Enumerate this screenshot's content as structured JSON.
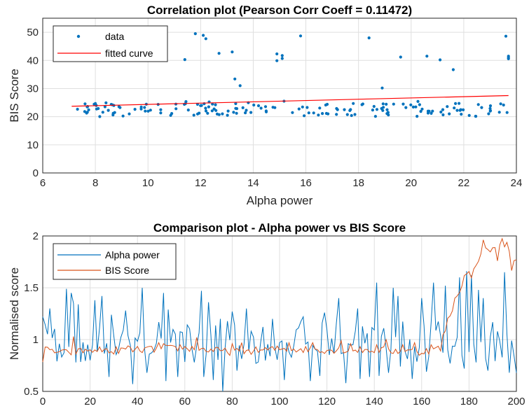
{
  "chart_data": [
    {
      "type": "scatter",
      "title": "Correlation plot (Pearson Corr Coeff = 0.11472)",
      "xlabel": "Alpha power",
      "ylabel": "BIS Score",
      "xlim": [
        6,
        24
      ],
      "ylim": [
        0,
        55
      ],
      "xticks": [
        "6",
        "8",
        "10",
        "12",
        "14",
        "16",
        "18",
        "20",
        "22",
        "24"
      ],
      "yticks": [
        "0",
        "10",
        "20",
        "30",
        "40",
        "50"
      ],
      "grid": true,
      "legend": {
        "position": "top-left",
        "entries": [
          "data",
          "fitted curve"
        ]
      },
      "colors": {
        "data": "#0072BD",
        "fit": "#ff0000"
      },
      "fit": {
        "x": [
          7.1,
          23.7
        ],
        "y": [
          23.7,
          27.5
        ]
      },
      "outliers": [
        [
          7.4,
          47.8
        ],
        [
          11.4,
          40.3
        ],
        [
          11.8,
          49.5
        ],
        [
          12.1,
          48.9
        ],
        [
          12.2,
          47.7
        ],
        [
          12.7,
          42.5
        ],
        [
          13.2,
          43.0
        ],
        [
          13.3,
          33.4
        ],
        [
          13.5,
          31.0
        ],
        [
          14.9,
          42.3
        ],
        [
          14.9,
          39.9
        ],
        [
          15.1,
          40.7
        ],
        [
          15.1,
          41.7
        ],
        [
          15.8,
          48.7
        ],
        [
          18.4,
          48.0
        ],
        [
          19.6,
          41.2
        ],
        [
          18.9,
          30.2
        ],
        [
          20.6,
          41.5
        ],
        [
          21.1,
          40.2
        ],
        [
          21.6,
          36.7
        ],
        [
          23.6,
          48.6
        ],
        [
          23.7,
          41.5
        ],
        [
          23.7,
          41.0
        ],
        [
          23.7,
          40.6
        ]
      ]
    },
    {
      "type": "line",
      "title": "Comparison plot - Alpha power vs BIS Score",
      "xlabel": "",
      "ylabel": "Normalised score",
      "xlim": [
        0,
        200
      ],
      "ylim": [
        0.5,
        2
      ],
      "xticks": [
        "0",
        "20",
        "40",
        "60",
        "80",
        "100",
        "120",
        "140",
        "160",
        "180",
        "200"
      ],
      "yticks": [
        "0.5",
        "1",
        "1.5",
        "2"
      ],
      "grid": true,
      "legend": {
        "position": "top-left",
        "entries": [
          "Alpha power",
          "BIS Score"
        ]
      },
      "colors": {
        "alpha": "#0072BD",
        "bis": "#D95319"
      },
      "bis_anchors": [
        [
          0,
          0.8
        ],
        [
          1,
          0.9
        ],
        [
          10,
          0.87
        ],
        [
          20,
          0.9
        ],
        [
          40,
          0.9
        ],
        [
          60,
          0.92
        ],
        [
          80,
          0.88
        ],
        [
          100,
          0.91
        ],
        [
          120,
          0.9
        ],
        [
          140,
          0.9
        ],
        [
          160,
          0.88
        ],
        [
          168,
          0.92
        ],
        [
          170,
          1.1
        ],
        [
          172,
          1.25
        ],
        [
          176,
          1.5
        ],
        [
          178,
          1.6
        ],
        [
          182,
          1.65
        ],
        [
          184,
          1.8
        ],
        [
          186,
          1.92
        ],
        [
          188,
          1.85
        ],
        [
          190,
          1.9
        ],
        [
          192,
          1.8
        ],
        [
          194,
          1.95
        ],
        [
          196,
          1.93
        ],
        [
          198,
          1.7
        ],
        [
          200,
          1.82
        ]
      ],
      "bis_bumps": [
        [
          13,
          1.03
        ],
        [
          22,
          0.9
        ],
        [
          30,
          0.86
        ],
        [
          36,
          0.94
        ],
        [
          49,
          0.97
        ],
        [
          51,
          0.96
        ],
        [
          58,
          0.95
        ],
        [
          65,
          1.02
        ],
        [
          80,
          0.96
        ],
        [
          84,
          0.97
        ],
        [
          104,
          0.97
        ],
        [
          114,
          0.97
        ],
        [
          126,
          0.99
        ],
        [
          130,
          0.96
        ],
        [
          141,
          0.95
        ],
        [
          145,
          1.0
        ],
        [
          152,
          0.95
        ],
        [
          157,
          0.97
        ],
        [
          164,
          0.95
        ]
      ],
      "alpha_spikes": [
        [
          0,
          1.22
        ],
        [
          3,
          1.3
        ],
        [
          10,
          1.49
        ],
        [
          12,
          1.45
        ],
        [
          13,
          1.35
        ],
        [
          15,
          1.34
        ],
        [
          22,
          1.38
        ],
        [
          25,
          1.42
        ],
        [
          29,
          1.24
        ],
        [
          35,
          1.28
        ],
        [
          42,
          1.5
        ],
        [
          51,
          1.45
        ],
        [
          53,
          1.29
        ],
        [
          67,
          1.47
        ],
        [
          70,
          1.36
        ],
        [
          75,
          1.2
        ],
        [
          80,
          1.27
        ],
        [
          86,
          1.3
        ],
        [
          97,
          1.2
        ],
        [
          110,
          1.22
        ],
        [
          119,
          1.26
        ],
        [
          125,
          1.4
        ],
        [
          133,
          1.3
        ],
        [
          141,
          1.55
        ],
        [
          148,
          1.5
        ],
        [
          150,
          1.42
        ],
        [
          160,
          1.4
        ],
        [
          165,
          1.55
        ],
        [
          170,
          1.52
        ],
        [
          176,
          1.6
        ],
        [
          179,
          1.66
        ],
        [
          181,
          1.62
        ],
        [
          184,
          1.48
        ],
        [
          186,
          1.4
        ],
        [
          195,
          1.65
        ]
      ],
      "alpha_dips": [
        [
          6,
          0.79
        ],
        [
          14,
          0.78
        ],
        [
          20,
          0.8
        ],
        [
          28,
          0.64
        ],
        [
          38,
          0.57
        ],
        [
          44,
          0.68
        ],
        [
          52,
          0.6
        ],
        [
          57,
          0.64
        ],
        [
          64,
          0.78
        ],
        [
          68,
          0.64
        ],
        [
          72,
          0.61
        ],
        [
          76,
          0.5
        ],
        [
          82,
          0.7
        ],
        [
          90,
          0.77
        ],
        [
          102,
          0.61
        ],
        [
          113,
          0.6
        ],
        [
          117,
          0.65
        ],
        [
          128,
          0.58
        ],
        [
          134,
          0.62
        ],
        [
          138,
          0.64
        ],
        [
          142,
          0.65
        ],
        [
          146,
          0.68
        ],
        [
          151,
          0.74
        ],
        [
          156,
          0.62
        ],
        [
          162,
          0.69
        ],
        [
          172,
          0.77
        ],
        [
          178,
          0.72
        ],
        [
          183,
          0.78
        ],
        [
          188,
          0.7
        ],
        [
          197,
          0.68
        ],
        [
          200,
          0.68
        ]
      ]
    }
  ]
}
